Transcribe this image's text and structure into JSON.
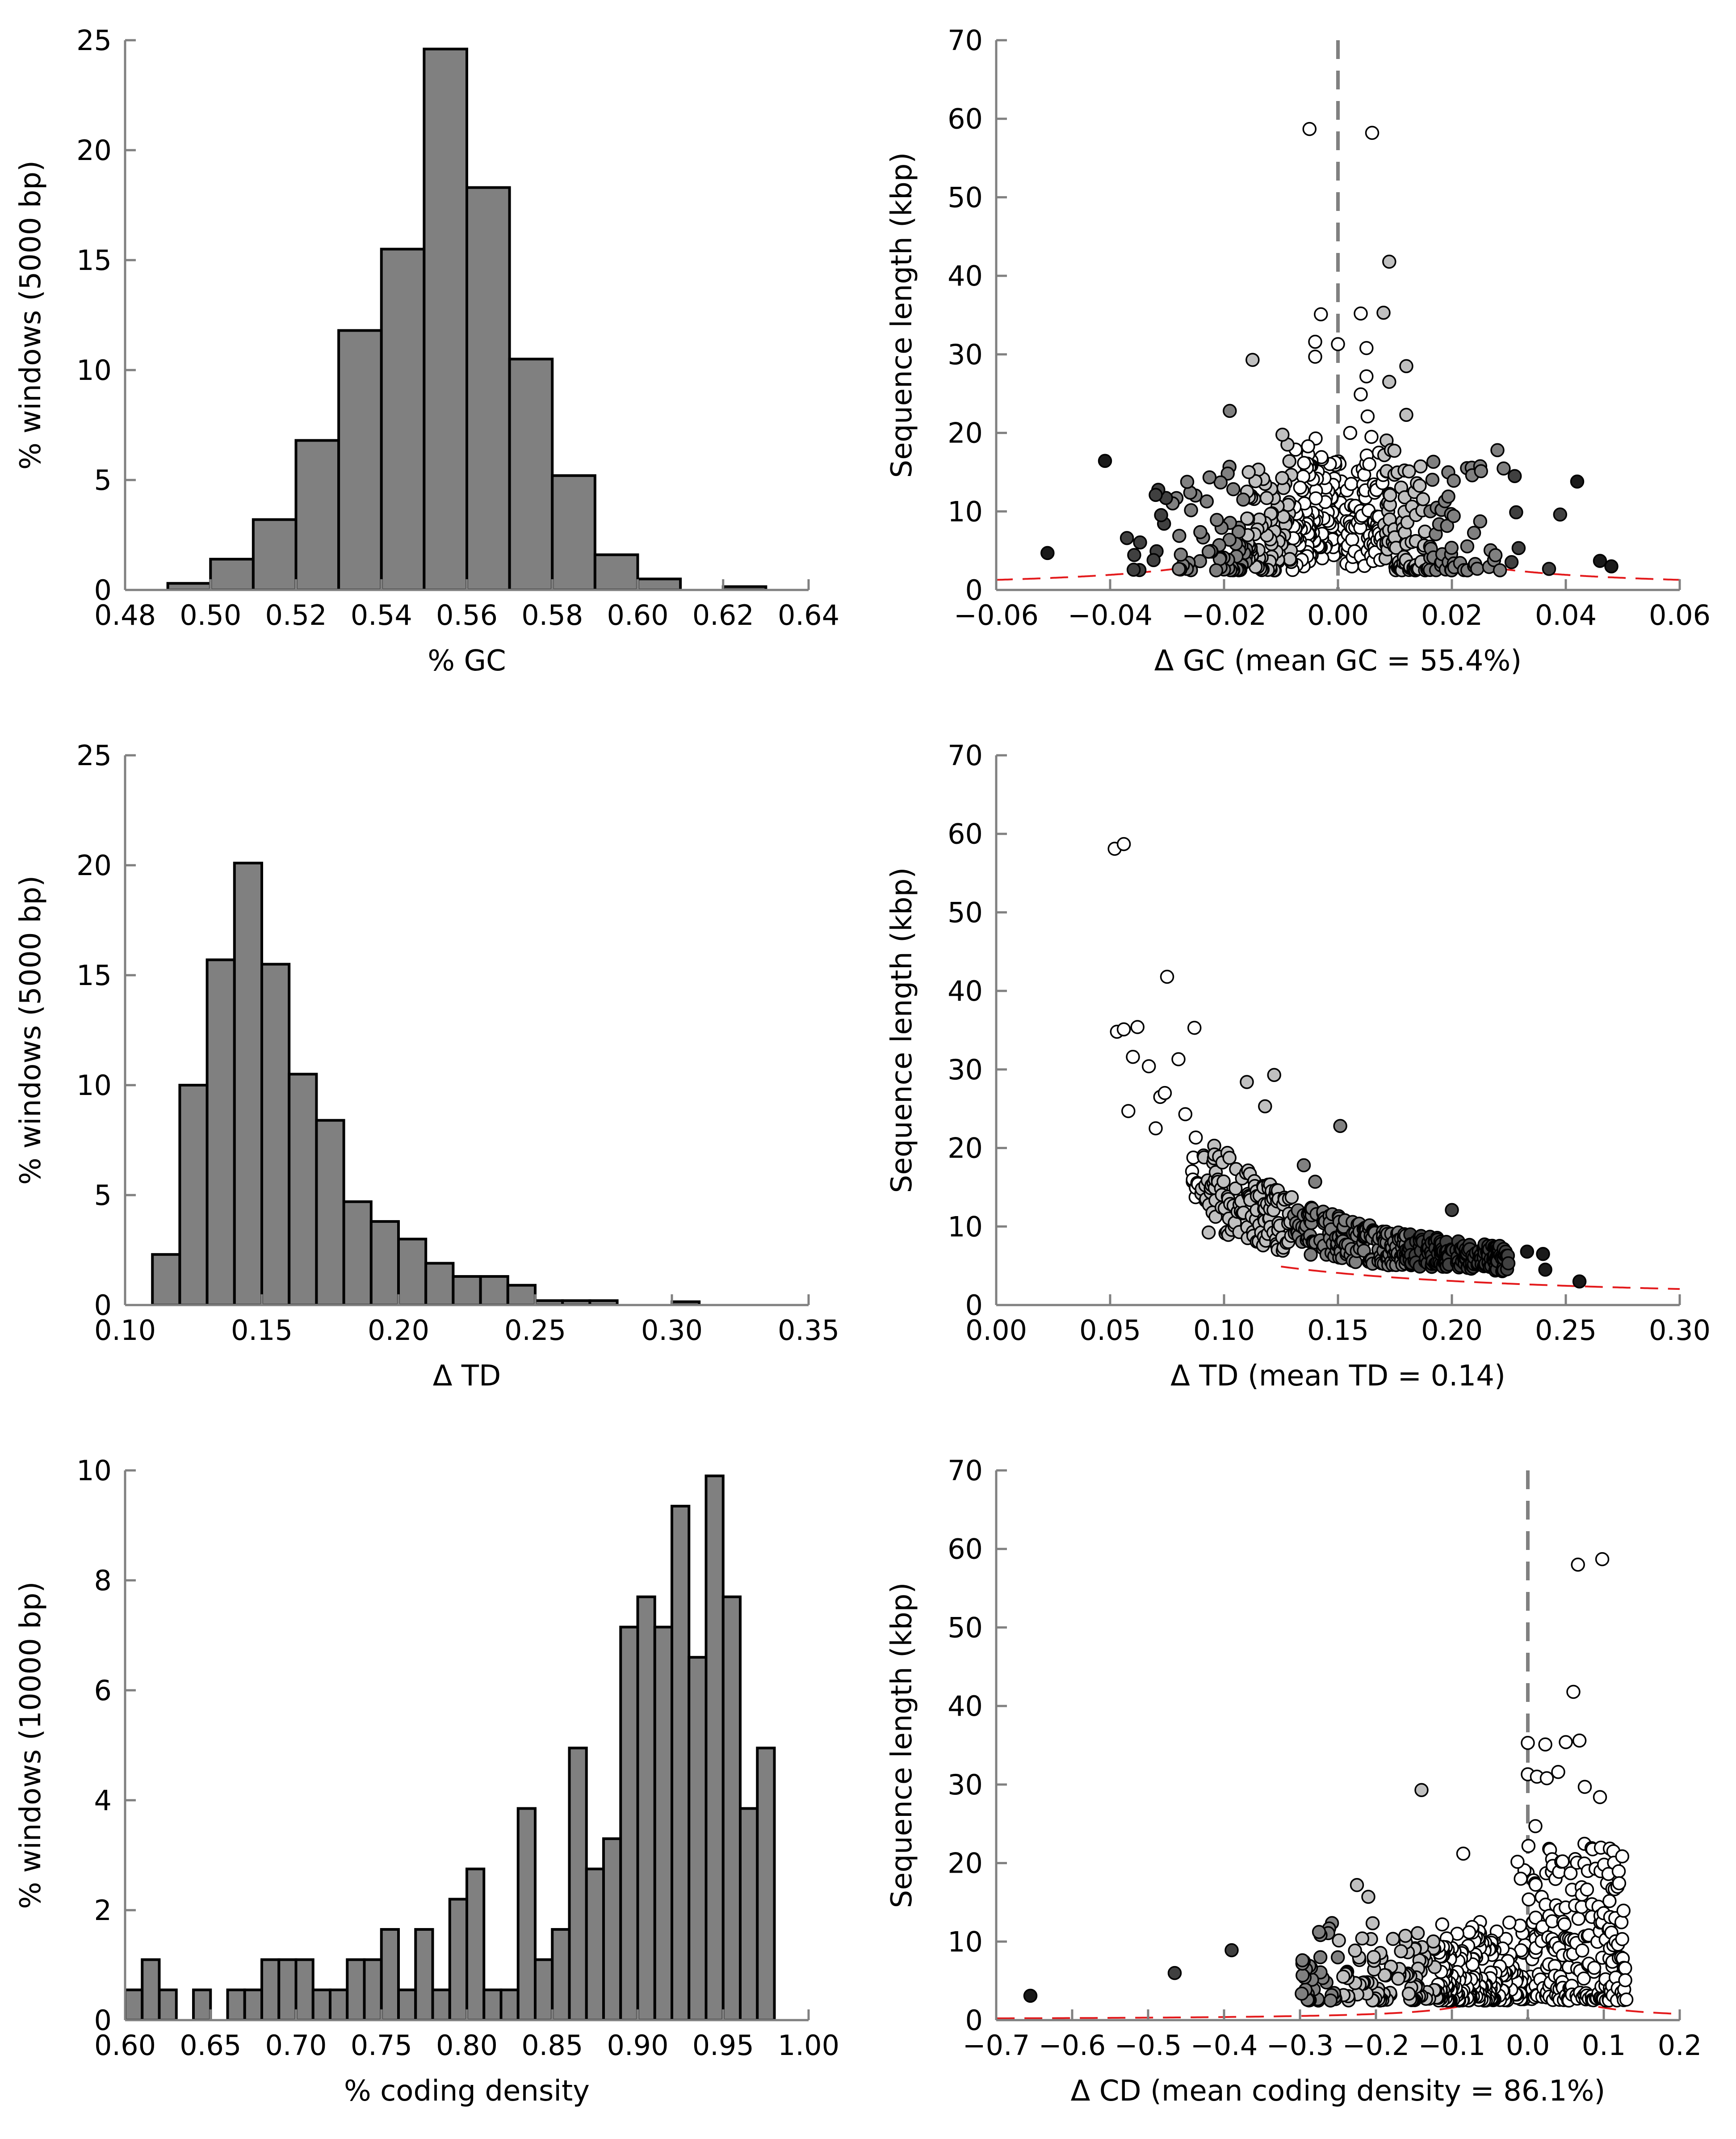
{
  "chart_data": [
    {
      "type": "bar",
      "xlabel": "% GC",
      "ylabel": "% windows (5000 bp)",
      "xlim": [
        0.48,
        0.64
      ],
      "ylim": [
        0,
        25
      ],
      "xticks": [
        "0.48",
        "0.50",
        "0.52",
        "0.54",
        "0.56",
        "0.58",
        "0.60",
        "0.62",
        "0.64"
      ],
      "yticks": [
        "0",
        "5",
        "10",
        "15",
        "20",
        "25"
      ],
      "bin_width": 0.01,
      "bin_starts": [
        0.49,
        0.5,
        0.51,
        0.52,
        0.53,
        0.54,
        0.55,
        0.56,
        0.57,
        0.58,
        0.59,
        0.6,
        0.62
      ],
      "values": [
        0.3,
        1.4,
        3.2,
        6.8,
        11.8,
        15.5,
        24.6,
        18.3,
        10.5,
        5.2,
        1.6,
        0.5,
        0.15
      ],
      "bar_color": "#808080"
    },
    {
      "type": "scatter",
      "xlabel": "Δ GC (mean GC = 55.4%)",
      "ylabel": "Sequence length (kbp)",
      "xlim": [
        -0.06,
        0.06
      ],
      "ylim": [
        0,
        70
      ],
      "xticks": [
        "−0.06",
        "−0.04",
        "−0.02",
        "0.00",
        "0.02",
        "0.04",
        "0.06"
      ],
      "yticks": [
        "0",
        "10",
        "20",
        "30",
        "40",
        "50",
        "60",
        "70"
      ],
      "center_line": 0,
      "boundary_k": 2.2,
      "boundary_xmin": 0.028,
      "outliers": [
        [
          -0.005,
          58.7
        ],
        [
          0.006,
          58.2
        ],
        [
          0.009,
          41.8
        ],
        [
          -0.003,
          35.1
        ],
        [
          0.004,
          35.2
        ],
        [
          0.008,
          35.3
        ],
        [
          -0.004,
          31.6
        ],
        [
          0.0,
          31.3
        ],
        [
          -0.004,
          29.7
        ],
        [
          0.005,
          30.8
        ],
        [
          -0.015,
          29.3
        ],
        [
          0.012,
          28.5
        ],
        [
          0.005,
          27.2
        ],
        [
          0.009,
          26.5
        ],
        [
          0.004,
          24.9
        ],
        [
          -0.019,
          22.8
        ],
        [
          0.012,
          22.3
        ],
        [
          -0.032,
          12.1
        ],
        [
          0.042,
          13.8
        ],
        [
          -0.051,
          4.7
        ],
        [
          0.046,
          3.7
        ],
        [
          0.048,
          3.0
        ],
        [
          0.039,
          9.6
        ],
        [
          0.028,
          17.8
        ]
      ],
      "seed": 7,
      "n_points": 480,
      "point_colors": [
        "#ffffff",
        "#c0c0c0",
        "#808080",
        "#404040",
        "#1a1a1a"
      ]
    },
    {
      "type": "bar",
      "xlabel": "Δ TD",
      "ylabel": "% windows (5000 bp)",
      "xlim": [
        0.1,
        0.35
      ],
      "ylim": [
        0,
        25
      ],
      "xticks": [
        "0.10",
        "0.15",
        "0.20",
        "0.25",
        "0.30",
        "0.35"
      ],
      "yticks": [
        "0",
        "5",
        "10",
        "15",
        "20",
        "25"
      ],
      "bin_width": 0.01,
      "bin_starts": [
        0.11,
        0.12,
        0.13,
        0.14,
        0.15,
        0.16,
        0.17,
        0.18,
        0.19,
        0.2,
        0.21,
        0.22,
        0.23,
        0.24,
        0.25,
        0.26,
        0.27,
        0.3
      ],
      "values": [
        2.3,
        10.0,
        15.7,
        20.1,
        15.5,
        10.5,
        8.4,
        4.7,
        3.8,
        3.0,
        1.9,
        1.3,
        1.3,
        0.9,
        0.2,
        0.2,
        0.2,
        0.15
      ],
      "bar_color": "#808080"
    },
    {
      "type": "scatter",
      "xlabel": "Δ TD (mean TD = 0.14)",
      "ylabel": "Sequence length (kbp)",
      "xlim": [
        0.0,
        0.3
      ],
      "ylim": [
        0,
        70
      ],
      "xticks": [
        "0.00",
        "0.05",
        "0.10",
        "0.15",
        "0.20",
        "0.25",
        "0.30"
      ],
      "yticks": [
        "0",
        "10",
        "20",
        "30",
        "40",
        "50",
        "60",
        "70"
      ],
      "boundary_k": 17.5,
      "boundary_xmin": 0.125,
      "outliers": [
        [
          0.052,
          58.1
        ],
        [
          0.056,
          58.7
        ],
        [
          0.075,
          41.8
        ],
        [
          0.053,
          34.8
        ],
        [
          0.056,
          35.1
        ],
        [
          0.062,
          35.4
        ],
        [
          0.087,
          35.3
        ],
        [
          0.06,
          31.6
        ],
        [
          0.067,
          30.4
        ],
        [
          0.08,
          31.3
        ],
        [
          0.074,
          27.0
        ],
        [
          0.058,
          24.7
        ],
        [
          0.072,
          26.5
        ],
        [
          0.11,
          28.4
        ],
        [
          0.122,
          29.3
        ],
        [
          0.118,
          25.3
        ],
        [
          0.151,
          22.8
        ],
        [
          0.2,
          12.1
        ],
        [
          0.241,
          4.5
        ],
        [
          0.256,
          3.0
        ],
        [
          0.24,
          6.5
        ],
        [
          0.233,
          6.8
        ],
        [
          0.14,
          15.7
        ],
        [
          0.135,
          17.8
        ],
        [
          0.083,
          24.3
        ],
        [
          0.07,
          22.5
        ]
      ],
      "seed": 13,
      "n_points": 480,
      "point_colors": [
        "#ffffff",
        "#c0c0c0",
        "#808080",
        "#404040",
        "#1a1a1a"
      ]
    },
    {
      "type": "bar",
      "xlabel": "% coding density",
      "ylabel": "% windows (10000 bp)",
      "xlim": [
        0.6,
        1.0
      ],
      "ylim": [
        0,
        10
      ],
      "xticks": [
        "0.60",
        "0.65",
        "0.70",
        "0.75",
        "0.80",
        "0.85",
        "0.90",
        "0.95",
        "1.00"
      ],
      "yticks": [
        "0",
        "2",
        "4",
        "6",
        "8",
        "10"
      ],
      "bin_width": 0.01,
      "bin_starts": [
        0.6,
        0.61,
        0.62,
        0.64,
        0.66,
        0.67,
        0.68,
        0.69,
        0.7,
        0.71,
        0.72,
        0.73,
        0.74,
        0.75,
        0.76,
        0.77,
        0.78,
        0.79,
        0.8,
        0.81,
        0.82,
        0.83,
        0.84,
        0.85,
        0.86,
        0.87,
        0.88,
        0.89,
        0.9,
        0.91,
        0.92,
        0.93,
        0.94,
        0.95,
        0.96,
        0.97
      ],
      "values": [
        0.55,
        1.1,
        0.55,
        0.55,
        0.55,
        0.55,
        1.1,
        1.1,
        1.1,
        0.55,
        0.55,
        1.1,
        1.1,
        1.65,
        0.55,
        1.65,
        0.55,
        2.2,
        2.75,
        0.55,
        0.55,
        3.85,
        1.1,
        1.65,
        4.95,
        2.75,
        3.3,
        7.15,
        7.7,
        7.15,
        9.35,
        6.6,
        9.9,
        7.7,
        3.85,
        4.95
      ],
      "bar_color": "#808080"
    },
    {
      "type": "scatter",
      "xlabel": "Δ CD (mean coding density = 86.1%)",
      "ylabel": "Sequence length (kbp)",
      "xlim": [
        -0.7,
        0.2
      ],
      "ylim": [
        0,
        70
      ],
      "xticks": [
        "−0.7",
        "−0.6",
        "−0.5",
        "−0.4",
        "−0.3",
        "−0.2",
        "−0.1",
        "0.0",
        "0.1",
        "0.2"
      ],
      "yticks": [
        "0",
        "10",
        "20",
        "30",
        "40",
        "50",
        "60",
        "70"
      ],
      "center_line": 0,
      "boundary_k": 4.5,
      "boundary_xmin": 0.058,
      "outliers": [
        [
          0.066,
          58.0
        ],
        [
          0.098,
          58.7
        ],
        [
          0.06,
          41.8
        ],
        [
          0.0,
          35.3
        ],
        [
          0.023,
          35.1
        ],
        [
          0.05,
          35.4
        ],
        [
          0.068,
          35.6
        ],
        [
          0.04,
          31.6
        ],
        [
          0.0,
          31.3
        ],
        [
          0.012,
          31.0
        ],
        [
          0.025,
          30.8
        ],
        [
          -0.14,
          29.3
        ],
        [
          0.075,
          29.7
        ],
        [
          0.095,
          28.4
        ],
        [
          0.01,
          24.7
        ],
        [
          -0.085,
          21.2
        ],
        [
          -0.655,
          3.1
        ],
        [
          -0.465,
          6.0
        ],
        [
          -0.39,
          8.9
        ],
        [
          -0.225,
          17.2
        ],
        [
          -0.21,
          15.7
        ]
      ],
      "seed": 29,
      "n_points": 560,
      "point_colors": [
        "#ffffff",
        "#c0c0c0",
        "#808080",
        "#404040",
        "#1a1a1a"
      ]
    }
  ],
  "colors": {
    "bar_fill": "#808080",
    "boundary_line": "#e31a1c",
    "center_line": "#808080",
    "axis": "#808080"
  }
}
